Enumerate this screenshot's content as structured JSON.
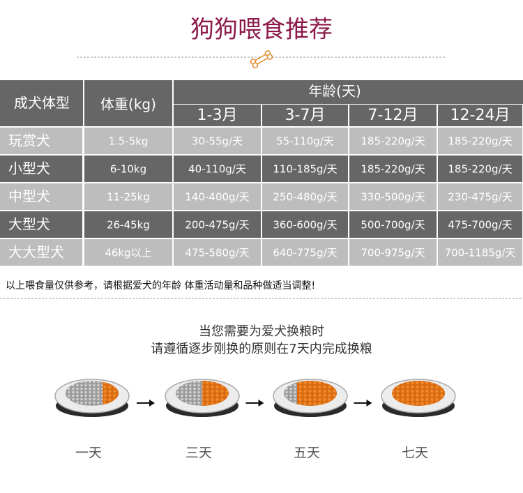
{
  "header": {
    "title": "狗狗喂食推荐"
  },
  "table": {
    "header": [
      "成犬体型",
      "体重(kg)",
      "年龄(天)"
    ],
    "age_columns": [
      "1-3月",
      "3-7月",
      "7-12月",
      "12-24月"
    ],
    "rows": [
      [
        "玩赏犬",
        "1.5-5kg",
        "30-55g/天",
        "55-110g/天",
        "185-220g/天",
        "185-220g/天"
      ],
      [
        "小型犬",
        "6-10kg",
        "40-110g/天",
        "110-185g/天",
        "185-220g/天",
        "185-220g/天"
      ],
      [
        "中型犬",
        "11-25kg",
        "140-400g/天",
        "250-480g/天",
        "330-500g/天",
        "230-475g/天"
      ],
      [
        "大型犬",
        "26-45kg",
        "200-475g/天",
        "360-600g/天",
        "500-700g/天",
        "475-700g/天"
      ],
      [
        "大大型犬",
        "46kg以上",
        "475-580g/天",
        "640-775g/天",
        "700-975g/天",
        "700-1185g/天"
      ]
    ]
  },
  "note": "以上喂食量仅供参考，请根据爱犬的年龄 体重活动量和品种做适当调整!",
  "transition": {
    "lines": [
      "当您需要为爱犬换粮时",
      "请遵循逐步刚换的原则在7天内完成换粮"
    ],
    "steps": [
      "一天",
      "三天",
      "五天",
      "七天"
    ]
  }
}
